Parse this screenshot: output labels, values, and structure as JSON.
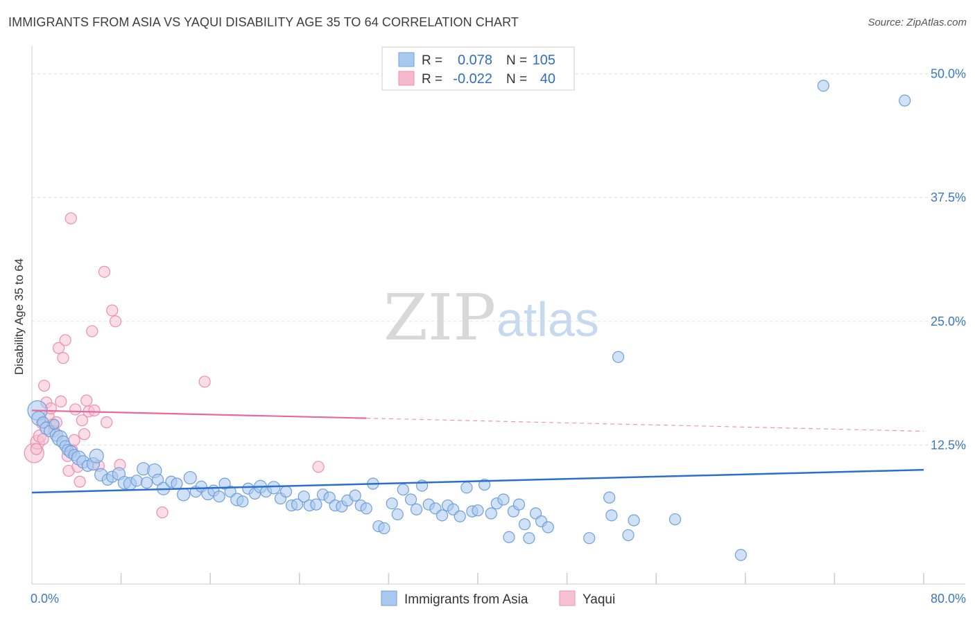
{
  "title": "IMMIGRANTS FROM ASIA VS YAQUI DISABILITY AGE 35 TO 64 CORRELATION CHART",
  "source": "Source: ZipAtlas.com",
  "watermark": {
    "zip": "ZIP",
    "atlas": "atlas"
  },
  "legend_top": {
    "r_label": "R =",
    "n_label": "N =",
    "rows": [
      {
        "r": "0.078",
        "n": "105",
        "color": "#a9c8ee"
      },
      {
        "r": "-0.022",
        "n": "40",
        "color": "#f6b8cc"
      }
    ]
  },
  "legend_bottom": [
    "Immigrants from Asia",
    "Yaqui"
  ],
  "colors": {
    "blue_fill": "#a9c8ee",
    "blue_stroke": "#6e9fdc",
    "blue_line": "#2a6fcf",
    "pink_fill": "#f6c1d2",
    "pink_stroke": "#ec8fae",
    "pink_line": "#e8689a",
    "grid": "#dddddd"
  },
  "chart_data": {
    "type": "scatter",
    "title": "IMMIGRANTS FROM ASIA VS YAQUI DISABILITY AGE 35 TO 64 CORRELATION CHART",
    "xlabel": "",
    "ylabel": "Disability Age 35 to 64",
    "xlim": [
      0,
      80
    ],
    "ylim": [
      0,
      52
    ],
    "x_tick_labels": [
      "0.0%",
      "80.0%"
    ],
    "y_ticks": [
      12.5,
      25.0,
      37.5,
      50.0
    ],
    "y_tick_labels": [
      "12.5%",
      "25.0%",
      "37.5%",
      "50.0%"
    ],
    "grid": true,
    "series": [
      {
        "name": "Immigrants from Asia",
        "r": 0.078,
        "n": 105,
        "trend": {
          "x": [
            0,
            80
          ],
          "y": [
            7.7,
            10.0
          ],
          "solid_to": 80
        },
        "points": [
          [
            0.5,
            16.0,
            14
          ],
          [
            0.6,
            15.2,
            10
          ],
          [
            1.0,
            14.8,
            8
          ],
          [
            1.3,
            14.2,
            9
          ],
          [
            1.6,
            13.9,
            8
          ],
          [
            2.0,
            14.6,
            7
          ],
          [
            2.2,
            13.5,
            9
          ],
          [
            2.5,
            13.2,
            11
          ],
          [
            2.8,
            12.8,
            9
          ],
          [
            3.0,
            12.4,
            8
          ],
          [
            3.2,
            12.0,
            8
          ],
          [
            3.5,
            11.8,
            9
          ],
          [
            3.8,
            11.5,
            8
          ],
          [
            4.2,
            11.2,
            10
          ],
          [
            4.6,
            10.8,
            9
          ],
          [
            5.0,
            10.4,
            8
          ],
          [
            5.5,
            10.6,
            9
          ],
          [
            5.8,
            11.4,
            10
          ],
          [
            6.2,
            9.5,
            9
          ],
          [
            6.8,
            9.0,
            8
          ],
          [
            7.2,
            9.3,
            8
          ],
          [
            7.8,
            9.6,
            9
          ],
          [
            8.3,
            8.7,
            9
          ],
          [
            8.8,
            8.6,
            9
          ],
          [
            9.4,
            8.9,
            8
          ],
          [
            10.0,
            10.1,
            9
          ],
          [
            10.3,
            8.7,
            8
          ],
          [
            11.0,
            9.9,
            10
          ],
          [
            11.3,
            9.0,
            8
          ],
          [
            11.8,
            8.1,
            9
          ],
          [
            12.5,
            8.8,
            8
          ],
          [
            13.0,
            8.6,
            8
          ],
          [
            13.6,
            7.5,
            9
          ],
          [
            14.2,
            9.2,
            9
          ],
          [
            14.7,
            7.8,
            8
          ],
          [
            15.2,
            8.3,
            8
          ],
          [
            15.8,
            7.6,
            9
          ],
          [
            16.3,
            7.9,
            8
          ],
          [
            16.8,
            7.3,
            8
          ],
          [
            17.3,
            8.6,
            8
          ],
          [
            17.8,
            7.8,
            8
          ],
          [
            18.4,
            7.0,
            9
          ],
          [
            18.9,
            6.8,
            8
          ],
          [
            19.4,
            8.1,
            8
          ],
          [
            20.0,
            7.6,
            8
          ],
          [
            20.5,
            8.3,
            9
          ],
          [
            21.0,
            7.8,
            8
          ],
          [
            21.7,
            8.2,
            9
          ],
          [
            22.3,
            7.1,
            8
          ],
          [
            22.8,
            7.8,
            8
          ],
          [
            23.3,
            6.4,
            8
          ],
          [
            23.8,
            6.5,
            8
          ],
          [
            24.4,
            7.3,
            8
          ],
          [
            24.9,
            6.4,
            8
          ],
          [
            25.5,
            6.5,
            8
          ],
          [
            26.1,
            7.5,
            8
          ],
          [
            26.7,
            7.2,
            8
          ],
          [
            27.2,
            6.4,
            8
          ],
          [
            27.8,
            6.3,
            8
          ],
          [
            28.3,
            6.9,
            8
          ],
          [
            29.0,
            7.4,
            8
          ],
          [
            29.5,
            6.4,
            8
          ],
          [
            30.0,
            6.1,
            8
          ],
          [
            30.6,
            8.6,
            8
          ],
          [
            31.1,
            4.3,
            8
          ],
          [
            31.6,
            4.1,
            8
          ],
          [
            32.3,
            6.6,
            8
          ],
          [
            32.8,
            5.5,
            8
          ],
          [
            33.3,
            8.0,
            8
          ],
          [
            34.0,
            7.0,
            8
          ],
          [
            34.5,
            6.0,
            8
          ],
          [
            35.0,
            8.4,
            8
          ],
          [
            35.6,
            6.5,
            8
          ],
          [
            36.2,
            6.1,
            8
          ],
          [
            36.8,
            5.4,
            8
          ],
          [
            37.3,
            6.4,
            8
          ],
          [
            37.8,
            6.0,
            8
          ],
          [
            38.4,
            5.3,
            8
          ],
          [
            39.0,
            8.2,
            8
          ],
          [
            39.5,
            5.8,
            8
          ],
          [
            40.0,
            5.9,
            8
          ],
          [
            40.6,
            8.5,
            8
          ],
          [
            41.2,
            5.6,
            8
          ],
          [
            41.7,
            6.6,
            8
          ],
          [
            42.3,
            7.0,
            8
          ],
          [
            42.8,
            3.2,
            8
          ],
          [
            43.2,
            5.8,
            8
          ],
          [
            43.7,
            6.5,
            8
          ],
          [
            44.2,
            4.5,
            8
          ],
          [
            44.6,
            3.1,
            8
          ],
          [
            45.2,
            5.6,
            8
          ],
          [
            45.7,
            4.8,
            8
          ],
          [
            46.3,
            4.2,
            8
          ],
          [
            50.0,
            3.1,
            8
          ],
          [
            51.8,
            7.2,
            8
          ],
          [
            52.0,
            5.4,
            8
          ],
          [
            52.6,
            21.4,
            8
          ],
          [
            53.5,
            3.4,
            8
          ],
          [
            54.0,
            4.9,
            8
          ],
          [
            57.7,
            5.0,
            8
          ],
          [
            63.6,
            1.4,
            8
          ],
          [
            71.0,
            48.8,
            8
          ],
          [
            78.3,
            47.3,
            8
          ]
        ]
      },
      {
        "name": "Yaqui",
        "r": -0.022,
        "n": 40,
        "trend": {
          "x": [
            0,
            80
          ],
          "y": [
            16.0,
            13.9
          ],
          "solid_to": 30
        },
        "points": [
          [
            0.2,
            11.7,
            14
          ],
          [
            0.5,
            12.8,
            10
          ],
          [
            0.7,
            13.4,
            9
          ],
          [
            0.9,
            14.7,
            8
          ],
          [
            1.1,
            18.5,
            8
          ],
          [
            1.3,
            16.8,
            8
          ],
          [
            1.5,
            15.4,
            8
          ],
          [
            1.7,
            16.2,
            8
          ],
          [
            1.9,
            14.6,
            8
          ],
          [
            2.0,
            13.9,
            8
          ],
          [
            2.2,
            14.8,
            8
          ],
          [
            2.4,
            22.3,
            8
          ],
          [
            2.6,
            16.9,
            8
          ],
          [
            2.8,
            21.3,
            8
          ],
          [
            3.0,
            23.1,
            8
          ],
          [
            3.2,
            11.4,
            8
          ],
          [
            3.3,
            9.9,
            8
          ],
          [
            3.5,
            35.4,
            8
          ],
          [
            3.6,
            12.0,
            8
          ],
          [
            3.8,
            13.0,
            8
          ],
          [
            3.9,
            16.1,
            8
          ],
          [
            4.1,
            10.3,
            8
          ],
          [
            4.3,
            8.8,
            8
          ],
          [
            4.5,
            15.0,
            8
          ],
          [
            4.7,
            13.6,
            8
          ],
          [
            4.9,
            17.0,
            8
          ],
          [
            5.1,
            15.9,
            8
          ],
          [
            5.4,
            24.0,
            8
          ],
          [
            5.6,
            16.0,
            8
          ],
          [
            6.0,
            10.4,
            8
          ],
          [
            6.5,
            30.0,
            8
          ],
          [
            6.7,
            14.8,
            8
          ],
          [
            7.2,
            26.1,
            8
          ],
          [
            7.5,
            25.0,
            8
          ],
          [
            7.9,
            10.5,
            8
          ],
          [
            11.7,
            5.7,
            8
          ],
          [
            15.5,
            18.9,
            8
          ],
          [
            25.7,
            10.3,
            8
          ],
          [
            0.4,
            12.1,
            8
          ],
          [
            1.0,
            13.1,
            8
          ]
        ]
      }
    ]
  }
}
